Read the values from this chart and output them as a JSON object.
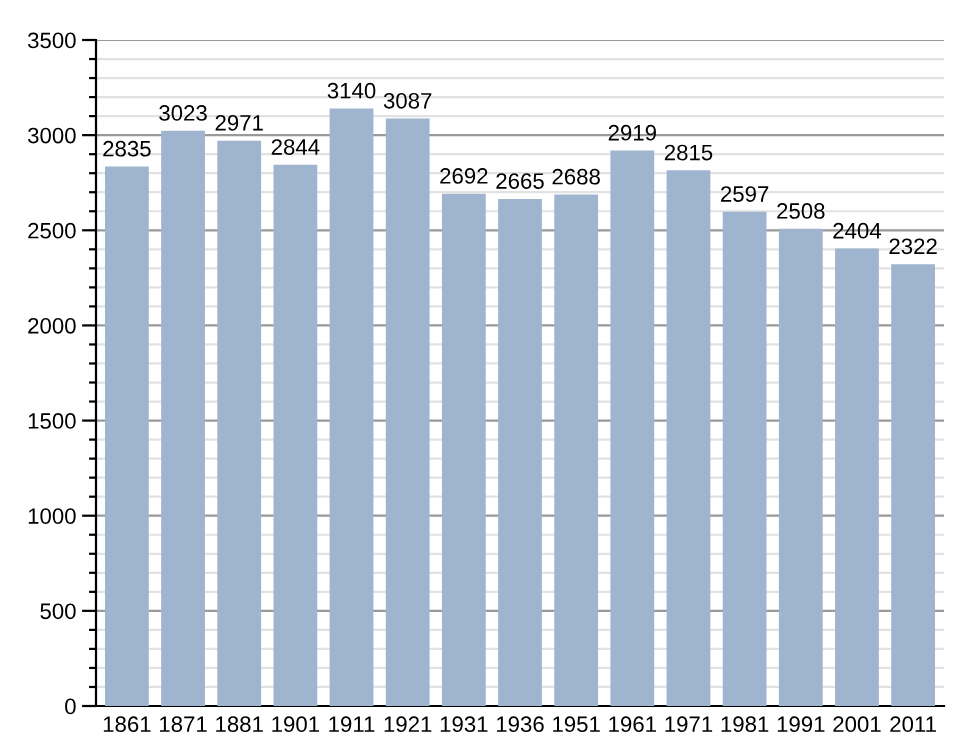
{
  "chart_data": {
    "type": "bar",
    "categories": [
      "1861",
      "1871",
      "1881",
      "1901",
      "1911",
      "1921",
      "1931",
      "1936",
      "1951",
      "1961",
      "1971",
      "1981",
      "1991",
      "2001",
      "2011"
    ],
    "values": [
      2835,
      3023,
      2971,
      2844,
      3140,
      3087,
      2692,
      2665,
      2688,
      2919,
      2815,
      2597,
      2508,
      2404,
      2322
    ],
    "color": "#9fb5cf",
    "ylim": [
      0,
      3500
    ],
    "yticks": [
      0,
      {
        "value": 100,
        "label": null
      },
      {
        "value": 200,
        "label": null
      },
      {
        "value": 300,
        "label": null
      },
      {
        "value": 400,
        "label": null
      },
      500,
      {
        "value": 600,
        "label": null
      },
      {
        "value": 700,
        "label": null
      },
      {
        "value": 800,
        "label": null
      },
      {
        "value": 900,
        "label": null
      },
      1000,
      {
        "value": 1100,
        "label": null
      },
      {
        "value": 1200,
        "label": null
      },
      {
        "value": 1300,
        "label": null
      },
      {
        "value": 1400,
        "label": null
      },
      1500,
      {
        "value": 1600,
        "label": null
      },
      {
        "value": 1700,
        "label": null
      },
      {
        "value": 1800,
        "label": null
      },
      {
        "value": 1900,
        "label": null
      },
      2000,
      {
        "value": 2100,
        "label": null
      },
      {
        "value": 2200,
        "label": null
      },
      {
        "value": 2300,
        "label": null
      },
      {
        "value": 2400,
        "label": null
      },
      2500,
      {
        "value": 2600,
        "label": null
      },
      {
        "value": 2700,
        "label": null
      },
      {
        "value": 2800,
        "label": null
      },
      {
        "value": 2900,
        "label": null
      },
      3000,
      {
        "value": 3100,
        "label": null
      },
      {
        "value": 3200,
        "label": null
      },
      {
        "value": 3300,
        "label": null
      },
      {
        "value": 3400,
        "label": null
      },
      3500
    ],
    "grid": "y",
    "data_labels": true
  }
}
